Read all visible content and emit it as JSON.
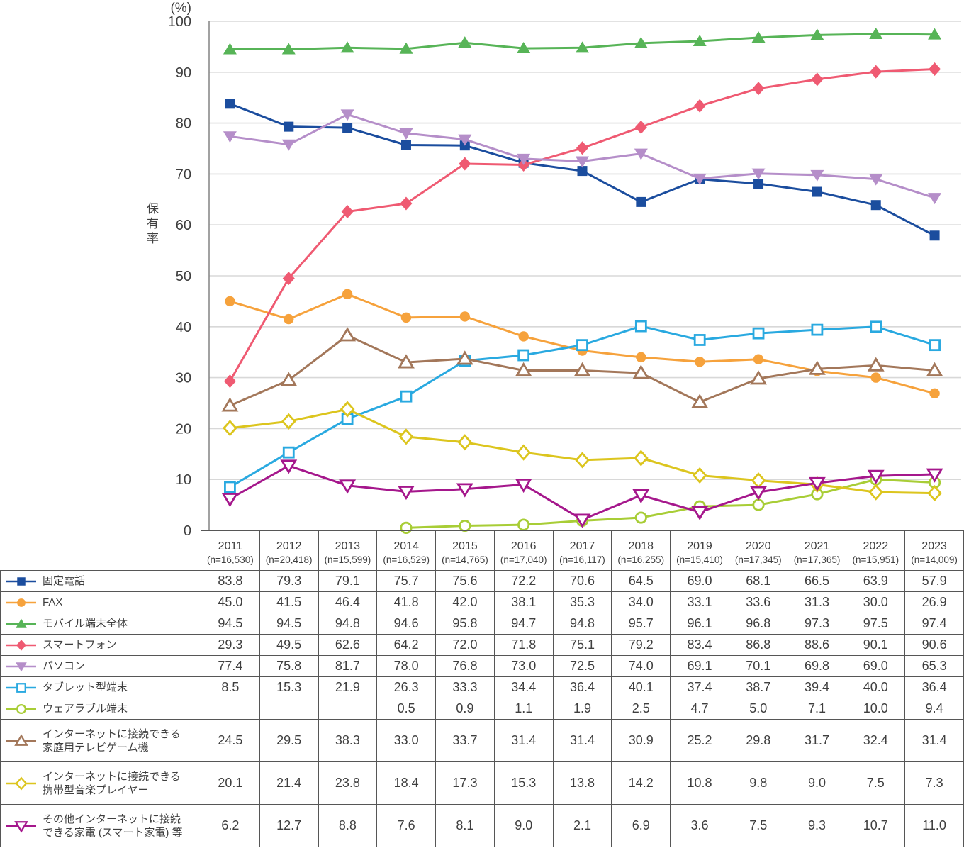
{
  "chart": {
    "unit_label": "(%)",
    "y_axis_title": "保有率",
    "grid_color": "#d8d8d8",
    "axis_color": "#8a8a8a",
    "text_color": "#3f3f3f",
    "table_border_color": "#565656"
  },
  "chart_data": {
    "type": "line",
    "title": "",
    "xlabel": "",
    "ylabel": "保有率",
    "unit": "%",
    "ylim": [
      0,
      100
    ],
    "y_tick_step": 10,
    "grid": true,
    "legend_position": "table-left-column",
    "categories": [
      {
        "year": "2011",
        "n": "(n=16,530)"
      },
      {
        "year": "2012",
        "n": "(n=20,418)"
      },
      {
        "year": "2013",
        "n": "(n=15,599)"
      },
      {
        "year": "2014",
        "n": "(n=16,529)"
      },
      {
        "year": "2015",
        "n": "(n=14,765)"
      },
      {
        "year": "2016",
        "n": "(n=17,040)"
      },
      {
        "year": "2017",
        "n": "(n=16,117)"
      },
      {
        "year": "2018",
        "n": "(n=16,255)"
      },
      {
        "year": "2019",
        "n": "(n=15,410)"
      },
      {
        "year": "2020",
        "n": "(n=17,345)"
      },
      {
        "year": "2021",
        "n": "(n=17,365)"
      },
      {
        "year": "2022",
        "n": "(n=15,951)"
      },
      {
        "year": "2023",
        "n": "(n=14,009)"
      }
    ],
    "series": [
      {
        "key": "fixed-phone",
        "name": "固定電話",
        "label_lines": [
          "固定電話"
        ],
        "color": "#1b4d9e",
        "marker": "square",
        "filled": true,
        "values": [
          83.8,
          79.3,
          79.1,
          75.7,
          75.6,
          72.2,
          70.6,
          64.5,
          69.0,
          68.1,
          66.5,
          63.9,
          57.9
        ]
      },
      {
        "key": "fax",
        "name": "FAX",
        "label_lines": [
          "FAX"
        ],
        "color": "#f6a23c",
        "marker": "circle",
        "filled": true,
        "values": [
          45.0,
          41.5,
          46.4,
          41.8,
          42.0,
          38.1,
          35.3,
          34.0,
          33.1,
          33.6,
          31.3,
          30.0,
          26.9
        ]
      },
      {
        "key": "mobile-total",
        "name": "モバイル端末全体",
        "label_lines": [
          "モバイル端末全体"
        ],
        "color": "#57b457",
        "marker": "triangle-up",
        "filled": true,
        "values": [
          94.5,
          94.5,
          94.8,
          94.6,
          95.8,
          94.7,
          94.8,
          95.7,
          96.1,
          96.8,
          97.3,
          97.5,
          97.4
        ]
      },
      {
        "key": "smartphone",
        "name": "スマートフォン",
        "label_lines": [
          "スマートフォン"
        ],
        "color": "#ef5a72",
        "marker": "diamond",
        "filled": true,
        "values": [
          29.3,
          49.5,
          62.6,
          64.2,
          72.0,
          71.8,
          75.1,
          79.2,
          83.4,
          86.8,
          88.6,
          90.1,
          90.6
        ]
      },
      {
        "key": "pc",
        "name": "パソコン",
        "label_lines": [
          "パソコン"
        ],
        "color": "#b58ec9",
        "marker": "triangle-down",
        "filled": true,
        "values": [
          77.4,
          75.8,
          81.7,
          78.0,
          76.8,
          73.0,
          72.5,
          74.0,
          69.1,
          70.1,
          69.8,
          69.0,
          65.3
        ]
      },
      {
        "key": "tablet",
        "name": "タブレット型端末",
        "label_lines": [
          "タブレット型端末"
        ],
        "color": "#29a9e0",
        "marker": "square",
        "filled": false,
        "values": [
          8.5,
          15.3,
          21.9,
          26.3,
          33.3,
          34.4,
          36.4,
          40.1,
          37.4,
          38.7,
          39.4,
          40.0,
          36.4
        ]
      },
      {
        "key": "wearable",
        "name": "ウェアラブル端末",
        "label_lines": [
          "ウェアラブル端末"
        ],
        "color": "#a8cd36",
        "marker": "circle",
        "filled": false,
        "values": [
          null,
          null,
          null,
          0.5,
          0.9,
          1.1,
          1.9,
          2.5,
          4.7,
          5.0,
          7.1,
          10.0,
          9.4
        ]
      },
      {
        "key": "game-console",
        "name": "インターネットに接続できる家庭用テレビゲーム機",
        "label_lines": [
          "インターネットに接続できる",
          "家庭用テレビゲーム機"
        ],
        "color": "#a3775a",
        "marker": "triangle-up",
        "filled": false,
        "values": [
          24.5,
          29.5,
          38.3,
          33.0,
          33.7,
          31.4,
          31.4,
          30.9,
          25.2,
          29.8,
          31.7,
          32.4,
          31.4
        ]
      },
      {
        "key": "music-player",
        "name": "インターネットに接続できる携帯型音楽プレイヤー",
        "label_lines": [
          "インターネットに接続できる",
          "携帯型音楽プレイヤー"
        ],
        "color": "#dcc51e",
        "marker": "diamond",
        "filled": false,
        "values": [
          20.1,
          21.4,
          23.8,
          18.4,
          17.3,
          15.3,
          13.8,
          14.2,
          10.8,
          9.8,
          9.0,
          7.5,
          7.3
        ]
      },
      {
        "key": "smart-appliance",
        "name": "その他インターネットに接続できる家電（スマート家電）等",
        "label_lines": [
          "その他インターネットに接続",
          "できる家電 (スマート家電) 等"
        ],
        "color": "#a5178c",
        "marker": "triangle-down",
        "filled": false,
        "values": [
          6.2,
          12.7,
          8.8,
          7.6,
          8.1,
          9.0,
          2.1,
          6.9,
          3.6,
          7.5,
          9.3,
          10.7,
          11.0
        ]
      }
    ]
  }
}
